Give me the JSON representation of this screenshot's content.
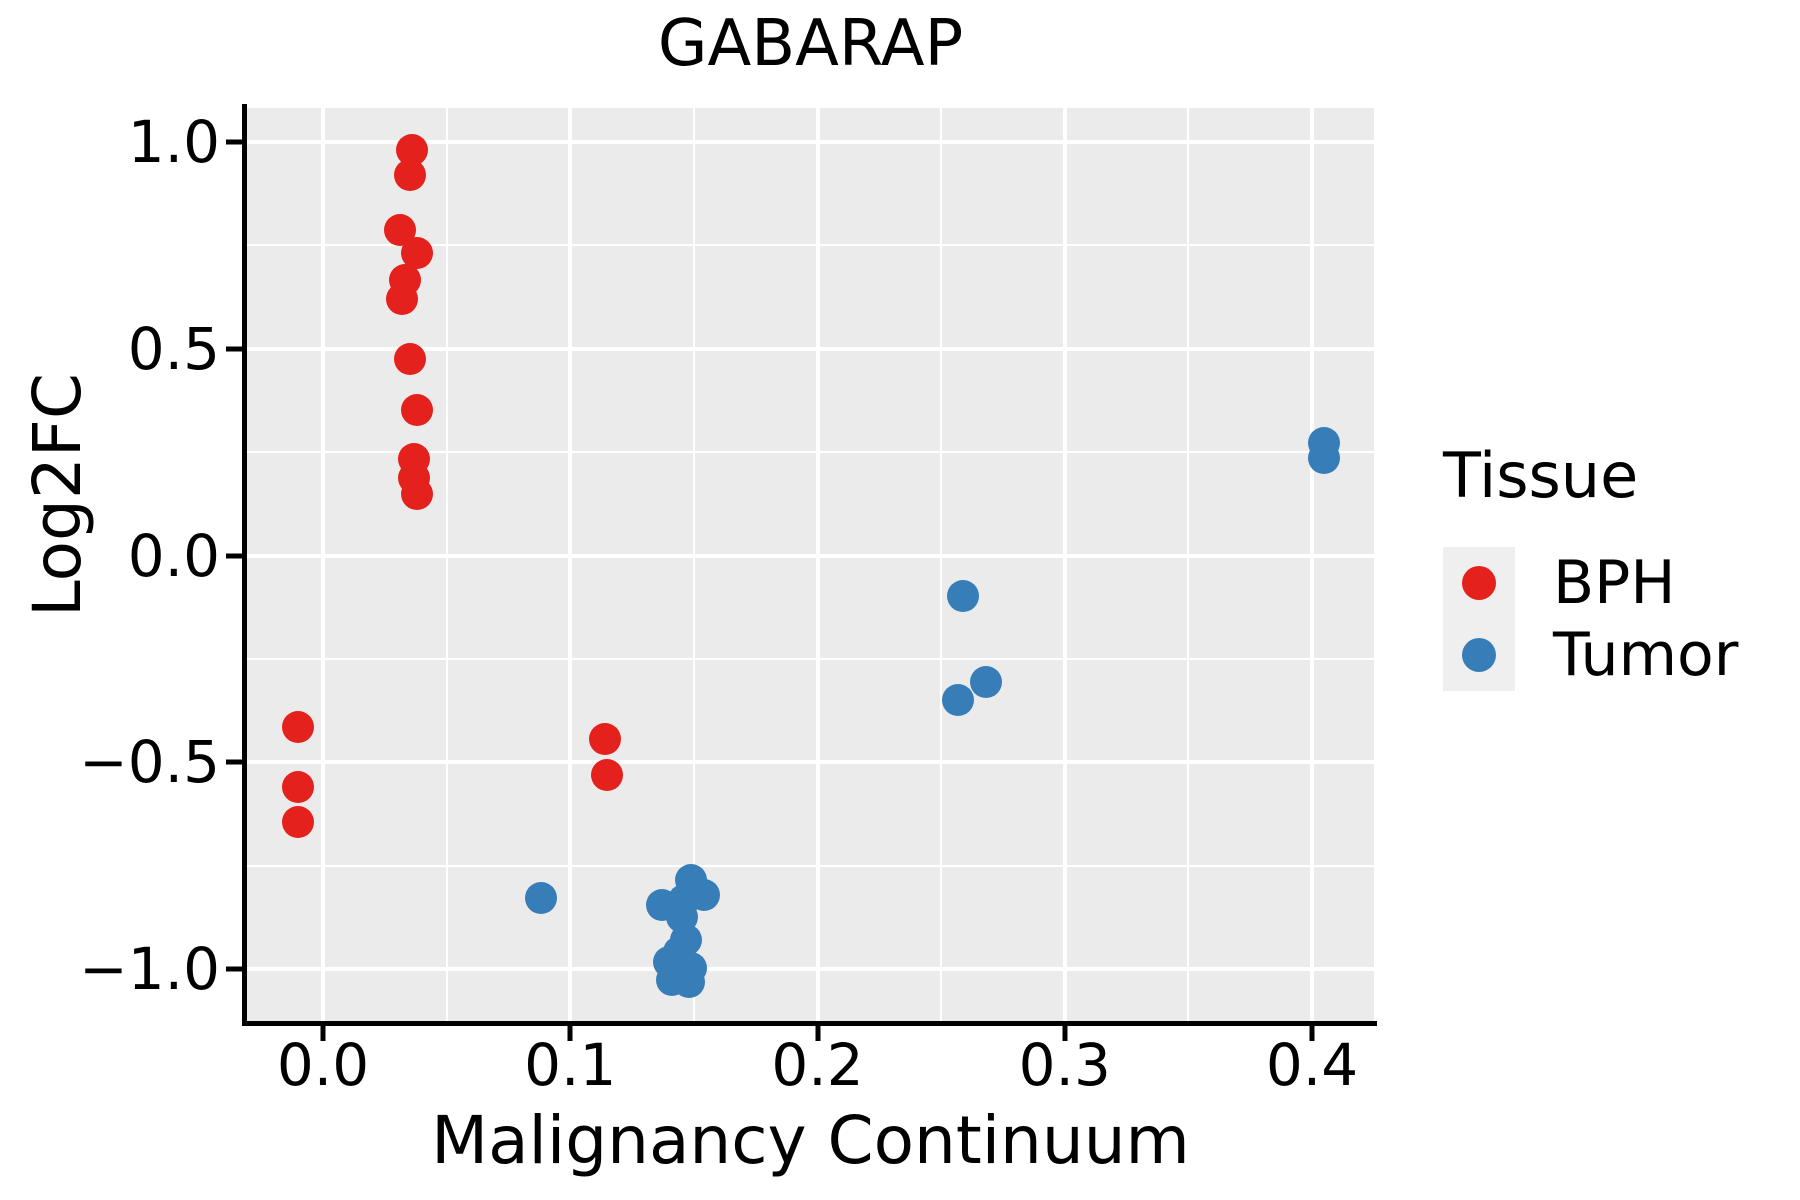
{
  "title": "GABARAP",
  "x_axis": {
    "label": "Malignancy Continuum",
    "tick_labels": [
      "0.0",
      "0.1",
      "0.2",
      "0.3",
      "0.4"
    ],
    "tick_values": [
      0.0,
      0.1,
      0.2,
      0.3,
      0.4
    ],
    "minor_tick_values": [
      0.05,
      0.15,
      0.25,
      0.35
    ],
    "range": [
      -0.031,
      0.425
    ]
  },
  "y_axis": {
    "label": "Log2FC",
    "tick_labels": [
      "1.0",
      "0.5",
      "0.0",
      "−0.5",
      "−1.0"
    ],
    "tick_values": [
      1.0,
      0.5,
      0.0,
      -0.5,
      -1.0
    ],
    "minor_tick_values": [
      0.75,
      0.25,
      -0.25,
      -0.75
    ],
    "range": [
      -1.126,
      1.082
    ]
  },
  "legend": {
    "title": "Tissue",
    "items": [
      {
        "label": "BPH",
        "color": "#E4211C"
      },
      {
        "label": "Tumor",
        "color": "#377EB8"
      }
    ]
  },
  "colors": {
    "panel_background": "#EBEBEB",
    "gridline": "#FFFFFF",
    "axis": "#000000",
    "legend_key_background": "#EFEFEF",
    "bph": "#E4211C",
    "tumor": "#377EB8"
  },
  "chart_data": {
    "type": "scatter",
    "title": "GABARAP",
    "xlabel": "Malignancy Continuum",
    "ylabel": "Log2FC",
    "xlim": [
      -0.031,
      0.425
    ],
    "ylim": [
      -1.126,
      1.082
    ],
    "grid": "on",
    "legend_position": "right",
    "series": [
      {
        "name": "BPH",
        "color": "#E4211C",
        "points": [
          [
            0.036,
            0.981
          ],
          [
            0.035,
            0.919
          ],
          [
            0.031,
            0.786
          ],
          [
            0.038,
            0.731
          ],
          [
            0.033,
            0.666
          ],
          [
            0.032,
            0.62
          ],
          [
            0.035,
            0.476
          ],
          [
            0.038,
            0.351
          ],
          [
            0.037,
            0.233
          ],
          [
            0.037,
            0.188
          ],
          [
            0.038,
            0.149
          ],
          [
            -0.01,
            -0.415
          ],
          [
            -0.01,
            -0.561
          ],
          [
            -0.01,
            -0.645
          ],
          [
            0.114,
            -0.443
          ],
          [
            0.115,
            -0.53
          ]
        ]
      },
      {
        "name": "Tumor",
        "color": "#377EB8",
        "points": [
          [
            0.405,
            0.271
          ],
          [
            0.405,
            0.237
          ],
          [
            0.259,
            -0.098
          ],
          [
            0.268,
            -0.305
          ],
          [
            0.257,
            -0.349
          ],
          [
            0.088,
            -0.828
          ],
          [
            0.149,
            -0.785
          ],
          [
            0.154,
            -0.821
          ],
          [
            0.146,
            -0.833
          ],
          [
            0.137,
            -0.845
          ],
          [
            0.145,
            -0.874
          ],
          [
            0.147,
            -0.93
          ],
          [
            0.144,
            -0.958
          ],
          [
            0.14,
            -0.982
          ],
          [
            0.149,
            -0.998
          ],
          [
            0.141,
            -1.027
          ],
          [
            0.148,
            -1.031
          ]
        ]
      }
    ]
  }
}
